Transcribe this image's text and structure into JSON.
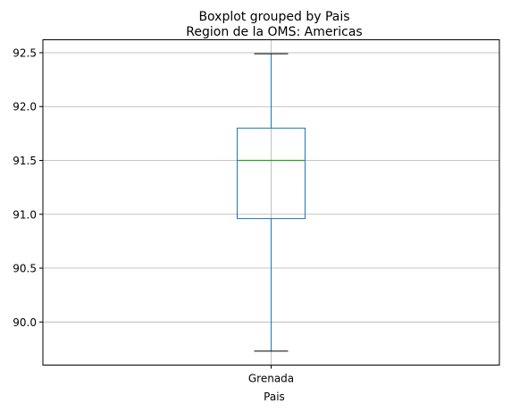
{
  "chart_data": {
    "type": "boxplot",
    "suptitle": "Boxplot grouped by Pais",
    "title": "Region de la OMS: Americas",
    "xlabel": "Pais",
    "ylabel": "",
    "categories": [
      "Grenada"
    ],
    "boxes": [
      {
        "category": "Grenada",
        "whisker_low": 89.73,
        "q1": 90.96,
        "median": 91.5,
        "q3": 91.8,
        "whisker_high": 92.49
      }
    ],
    "ylim": [
      89.6,
      92.62
    ],
    "yticks": [
      90.0,
      90.5,
      91.0,
      91.5,
      92.0,
      92.5
    ],
    "ytick_labels": [
      "90.0",
      "90.5",
      "91.0",
      "91.5",
      "92.0",
      "92.5"
    ],
    "grid": true,
    "colors": {
      "box": "#1f77b4",
      "median": "#2ca02c",
      "whisker": "#1f77b4",
      "cap": "#000000",
      "grid": "#b0b0b0"
    }
  }
}
